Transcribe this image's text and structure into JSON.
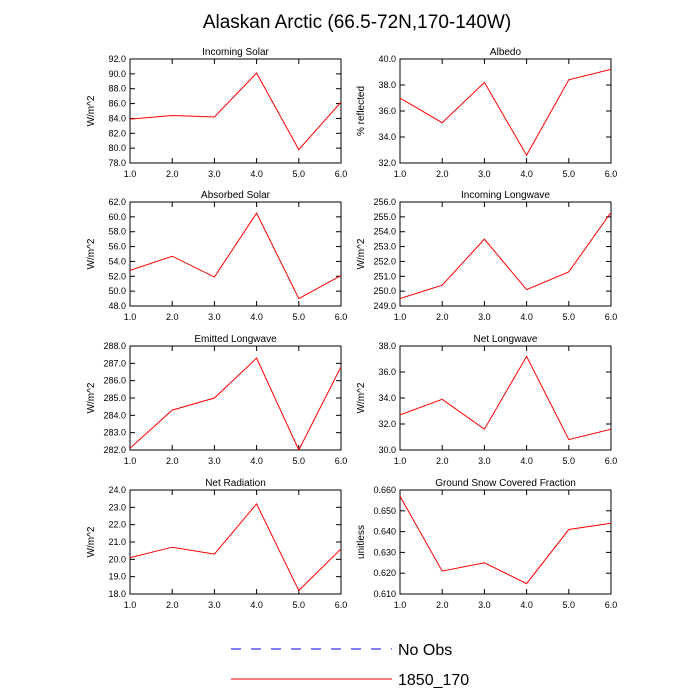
{
  "title": "Alaskan Arctic (66.5-72N,170-140W)",
  "colors": {
    "series": "#ff0000",
    "obs": "#0000ff",
    "axis": "#000000"
  },
  "legend": [
    {
      "label": "No Obs",
      "style": "dashed",
      "color": "#0000ff"
    },
    {
      "label": "1850_170",
      "style": "solid",
      "color": "#ff0000"
    }
  ],
  "chart_data": [
    {
      "type": "line",
      "title": "Incoming Solar",
      "ylabel": "W/m^2",
      "x": [
        1,
        2,
        3,
        4,
        5,
        6
      ],
      "xlim": [
        1,
        6
      ],
      "xticks": [
        "1.0",
        "2.0",
        "3.0",
        "4.0",
        "5.0",
        "6.0"
      ],
      "ylim": [
        78,
        92
      ],
      "yticks": [
        "78.0",
        "80.0",
        "82.0",
        "84.0",
        "86.0",
        "88.0",
        "90.0",
        "92.0"
      ],
      "series": [
        {
          "values": [
            83.9,
            84.4,
            84.2,
            90.1,
            79.8,
            86.2
          ]
        }
      ]
    },
    {
      "type": "line",
      "title": "Albedo",
      "ylabel": "% reflected",
      "x": [
        1,
        2,
        3,
        4,
        5,
        6
      ],
      "xlim": [
        1,
        6
      ],
      "xticks": [
        "1.0",
        "2.0",
        "3.0",
        "4.0",
        "5.0",
        "6.0"
      ],
      "ylim": [
        32,
        40
      ],
      "yticks": [
        "32.0",
        "34.0",
        "36.0",
        "38.0",
        "40.0"
      ],
      "series": [
        {
          "values": [
            37.0,
            35.1,
            38.2,
            32.6,
            38.4,
            39.2
          ]
        }
      ]
    },
    {
      "type": "line",
      "title": "Absorbed Solar",
      "ylabel": "W/m^2",
      "x": [
        1,
        2,
        3,
        4,
        5,
        6
      ],
      "xlim": [
        1,
        6
      ],
      "xticks": [
        "1.0",
        "2.0",
        "3.0",
        "4.0",
        "5.0",
        "6.0"
      ],
      "ylim": [
        48,
        62
      ],
      "yticks": [
        "48.0",
        "50.0",
        "52.0",
        "54.0",
        "56.0",
        "58.0",
        "60.0",
        "62.0"
      ],
      "series": [
        {
          "values": [
            52.8,
            54.7,
            51.9,
            60.5,
            49.0,
            52.1
          ]
        }
      ]
    },
    {
      "type": "line",
      "title": "Incoming Longwave",
      "ylabel": "W/m^2",
      "x": [
        1,
        2,
        3,
        4,
        5,
        6
      ],
      "xlim": [
        1,
        6
      ],
      "xticks": [
        "1.0",
        "2.0",
        "3.0",
        "4.0",
        "5.0",
        "6.0"
      ],
      "ylim": [
        249,
        256
      ],
      "yticks": [
        "249.0",
        "250.0",
        "251.0",
        "252.0",
        "253.0",
        "254.0",
        "255.0",
        "256.0"
      ],
      "series": [
        {
          "values": [
            249.5,
            250.4,
            253.5,
            250.1,
            251.3,
            255.3
          ]
        }
      ]
    },
    {
      "type": "line",
      "title": "Emitted Longwave",
      "ylabel": "W/m^2",
      "x": [
        1,
        2,
        3,
        4,
        5,
        6
      ],
      "xlim": [
        1,
        6
      ],
      "xticks": [
        "1.0",
        "2.0",
        "3.0",
        "4.0",
        "5.0",
        "6.0"
      ],
      "ylim": [
        282,
        288
      ],
      "yticks": [
        "282.0",
        "283.0",
        "284.0",
        "285.0",
        "286.0",
        "287.0",
        "288.0"
      ],
      "series": [
        {
          "values": [
            282.1,
            284.3,
            285.0,
            287.3,
            282.0,
            286.8
          ]
        }
      ]
    },
    {
      "type": "line",
      "title": "Net Longwave",
      "ylabel": "W/m^2",
      "x": [
        1,
        2,
        3,
        4,
        5,
        6
      ],
      "xlim": [
        1,
        6
      ],
      "xticks": [
        "1.0",
        "2.0",
        "3.0",
        "4.0",
        "5.0",
        "6.0"
      ],
      "ylim": [
        30,
        38
      ],
      "yticks": [
        "30.0",
        "32.0",
        "34.0",
        "36.0",
        "38.0"
      ],
      "series": [
        {
          "values": [
            32.7,
            33.9,
            31.6,
            37.2,
            30.8,
            31.6
          ]
        }
      ]
    },
    {
      "type": "line",
      "title": "Net Radiation",
      "ylabel": "W/m^2",
      "x": [
        1,
        2,
        3,
        4,
        5,
        6
      ],
      "xlim": [
        1,
        6
      ],
      "xticks": [
        "1.0",
        "2.0",
        "3.0",
        "4.0",
        "5.0",
        "6.0"
      ],
      "ylim": [
        18,
        24
      ],
      "yticks": [
        "18.0",
        "19.0",
        "20.0",
        "21.0",
        "22.0",
        "23.0",
        "24.0"
      ],
      "series": [
        {
          "values": [
            20.1,
            20.7,
            20.3,
            23.2,
            18.2,
            20.6
          ]
        }
      ]
    },
    {
      "type": "line",
      "title": "Ground Snow Covered Fraction",
      "ylabel": "unitless",
      "x": [
        1,
        2,
        3,
        4,
        5,
        6
      ],
      "xlim": [
        1,
        6
      ],
      "xticks": [
        "1.0",
        "2.0",
        "3.0",
        "4.0",
        "5.0",
        "6.0"
      ],
      "ylim": [
        0.61,
        0.66
      ],
      "yticks": [
        "0.610",
        "0.620",
        "0.630",
        "0.640",
        "0.650",
        "0.660"
      ],
      "series": [
        {
          "values": [
            0.657,
            0.621,
            0.625,
            0.615,
            0.641,
            0.644
          ]
        }
      ]
    }
  ]
}
